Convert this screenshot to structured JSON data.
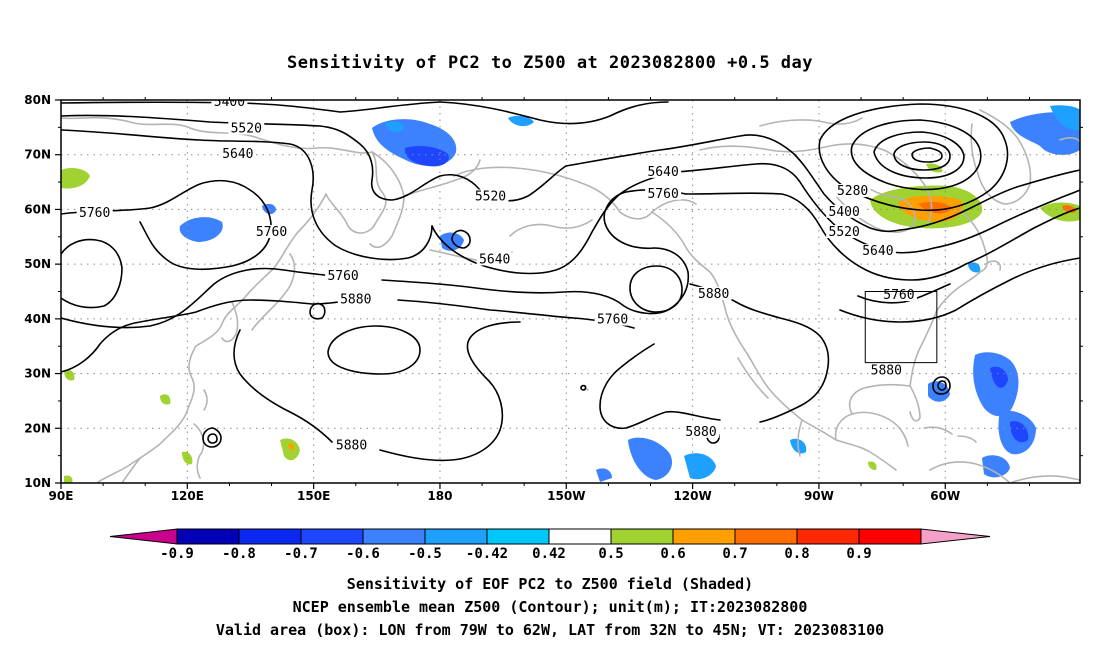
{
  "title": "Sensitivity of PC2 to Z500 at 2023082800 +0.5 day",
  "lat_labels": [
    "80N",
    "70N",
    "60N",
    "50N",
    "40N",
    "30N",
    "20N",
    "10N"
  ],
  "lon_labels": [
    "90E",
    "120E",
    "150E",
    "180",
    "150W",
    "120W",
    "90W",
    "60W"
  ],
  "contour_levels": [
    "5280",
    "5400",
    "5520",
    "5640",
    "5760",
    "5880"
  ],
  "contour_labels": [
    {
      "text": "5400",
      "lon": 130,
      "lat": 79.3
    },
    {
      "text": "5520",
      "lon": 134,
      "lat": 74.4
    },
    {
      "text": "5640",
      "lon": 132,
      "lat": 69.8
    },
    {
      "text": "5760",
      "lon": 98,
      "lat": 59.0
    },
    {
      "text": "5760",
      "lon": 140,
      "lat": 55.5
    },
    {
      "text": "5520",
      "lon": 192,
      "lat": 62.0
    },
    {
      "text": "5640",
      "lon": 233,
      "lat": 66.5
    },
    {
      "text": "5760",
      "lon": 233,
      "lat": 62.5
    },
    {
      "text": "5640",
      "lon": 193,
      "lat": 50.5
    },
    {
      "text": "5760",
      "lon": 157,
      "lat": 47.5
    },
    {
      "text": "5880",
      "lon": 160,
      "lat": 43.2
    },
    {
      "text": "5760",
      "lon": 221,
      "lat": 39.5
    },
    {
      "text": "5880",
      "lon": 245,
      "lat": 44.2
    },
    {
      "text": "5280",
      "lon": 278,
      "lat": 63.0
    },
    {
      "text": "5400",
      "lon": 276,
      "lat": 59.2
    },
    {
      "text": "5520",
      "lon": 276,
      "lat": 55.5
    },
    {
      "text": "5640",
      "lon": 284,
      "lat": 52.0
    },
    {
      "text": "5760",
      "lon": 289,
      "lat": 44.0
    },
    {
      "text": "5880",
      "lon": 286,
      "lat": 30.2
    },
    {
      "text": "5880",
      "lon": 159,
      "lat": 16.5
    },
    {
      "text": "5880",
      "lon": 242,
      "lat": 19.0
    }
  ],
  "valid_box": {
    "lon_min": -79,
    "lon_max": -62,
    "lat_min": 32,
    "lat_max": 45
  },
  "colorbar": {
    "labels": [
      "-0.9",
      "-0.8",
      "-0.7",
      "-0.6",
      "-0.5",
      "-0.42",
      "0.42",
      "0.5",
      "0.6",
      "0.7",
      "0.8",
      "0.9"
    ],
    "colors": [
      "#0000b4",
      "#0a28f0",
      "#1e46ff",
      "#3c82ff",
      "#1ea0ff",
      "#00c8ff",
      "#ffffff",
      "#a0d232",
      "#ffa000",
      "#ff6e00",
      "#ff2800",
      "#ff0000"
    ],
    "low_end_color": "#c8008c",
    "high_end_color": "#f4a0c8"
  },
  "caption": {
    "line1": "Sensitivity of EOF PC2 to Z500 field (Shaded)",
    "line2": "NCEP ensemble mean Z500 (Contour); unit(m); IT:2023082800",
    "line3": "Valid area (box): LON from 79W to 62W, LAT from 32N to 45N; VT: 2023083100"
  }
}
